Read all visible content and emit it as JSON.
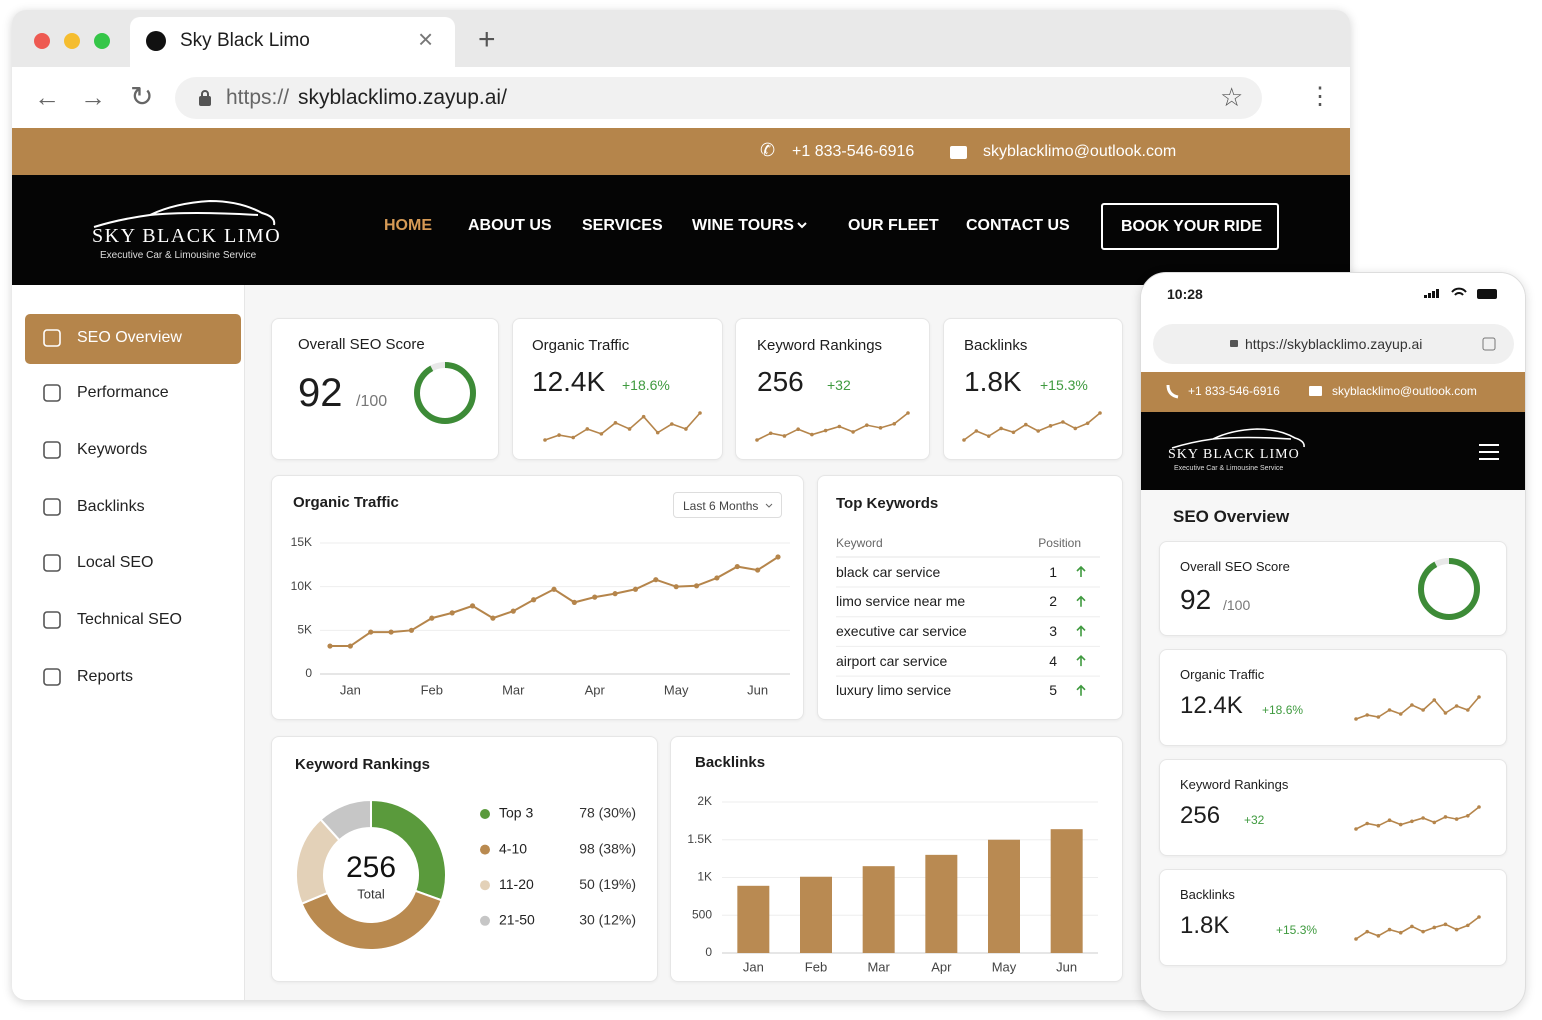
{
  "browser": {
    "tab_title": "Sky Black Limo",
    "url_scheme": "https://",
    "url_host": "skyblacklimo.zayup.ai/"
  },
  "topbar": {
    "phone": "+1 833-546-6916",
    "email": "skyblacklimo@outlook.com"
  },
  "brand": {
    "name": "SKY BLACK LIMO",
    "tagline": "Executive Car & Limousine Service"
  },
  "nav": {
    "items": [
      "HOME",
      "ABOUT US",
      "SERVICES",
      "WINE TOURS",
      "OUR FLEET",
      "CONTACT US"
    ],
    "cta": "BOOK YOUR RIDE"
  },
  "sidebar": [
    "SEO Overview",
    "Performance",
    "Keywords",
    "Backlinks",
    "Local SEO",
    "Technical SEO",
    "Reports"
  ],
  "kpis": {
    "seo_score": {
      "label": "Overall SEO Score",
      "value": 92,
      "out_of": {
        "value": 100,
        "label": "/100"
      }
    },
    "organic_traffic": {
      "label": "Organic Traffic",
      "value": "12.4K",
      "change": "+18.6%",
      "spark": [
        3,
        7,
        5,
        12,
        8,
        17,
        12,
        22,
        9,
        16,
        12,
        25
      ]
    },
    "keyword_rankings": {
      "label": "Keyword Rankings",
      "value": "256",
      "change": "+32",
      "spark": [
        4,
        9,
        7,
        12,
        8,
        11,
        14,
        10,
        15,
        13,
        16,
        24
      ]
    },
    "backlinks": {
      "label": "Backlinks",
      "value": "1.8K",
      "change": "+15.3%",
      "spark": [
        3,
        10,
        6,
        12,
        9,
        15,
        10,
        14,
        17,
        12,
        16,
        24
      ]
    }
  },
  "chart_data": [
    {
      "type": "line",
      "title": "Organic Traffic",
      "range": "Last 6 Months",
      "categories": [
        null,
        "Jan",
        null,
        null,
        null,
        "Feb",
        null,
        null,
        null,
        "Mar",
        null,
        null,
        null,
        "Apr",
        null,
        null,
        null,
        "May",
        null,
        null,
        null,
        "Jun",
        null
      ],
      "values": [
        3200,
        3200,
        4800,
        4800,
        5000,
        6400,
        7000,
        7800,
        6400,
        7200,
        8500,
        9700,
        8200,
        8800,
        9200,
        9700,
        10800,
        10000,
        10100,
        11000,
        12300,
        11900,
        13400
      ],
      "color": "#b5854b",
      "ylim": [
        0,
        15000
      ],
      "yticks": [
        0,
        {
          "value": 5000,
          "label": "5K"
        },
        {
          "value": 10000,
          "label": "10K"
        },
        {
          "value": 15000,
          "label": "15K"
        }
      ],
      "grid": true
    },
    {
      "type": "donut",
      "title": "Keyword Rankings",
      "total": 256,
      "total_label": "Total",
      "categories": [
        "Top 3",
        "4-10",
        "11-20",
        "21-50"
      ],
      "values": [
        78,
        98,
        50,
        30
      ],
      "value_labels": [
        "78 (30%)",
        "98 (38%)",
        "50 (19%)",
        "30 (12%)"
      ],
      "colors": [
        "#5a9a3c",
        "#b98a50",
        "#e3d1b8",
        "#c6c6c6"
      ]
    },
    {
      "type": "bar",
      "title": "Backlinks",
      "categories": [
        "Jan",
        "Feb",
        "Mar",
        "Apr",
        "May",
        "Jun"
      ],
      "values": [
        890,
        1010,
        1150,
        1300,
        1500,
        1640
      ],
      "color": "#b98a52",
      "ylim": [
        0,
        2000
      ],
      "yticks": [
        0,
        500,
        {
          "value": 1000,
          "label": "1K"
        },
        {
          "value": 1500,
          "label": "1.5K"
        },
        {
          "value": 2000,
          "label": "2K"
        }
      ],
      "grid": true
    }
  ],
  "top_keywords": {
    "title": "Top Keywords",
    "columns": [
      "Keyword",
      "Position"
    ],
    "rows": [
      [
        "black car service",
        1
      ],
      [
        "limo service near me",
        2
      ],
      [
        "executive car service",
        3
      ],
      [
        "airport car service",
        4
      ],
      [
        "luxury limo service",
        5
      ]
    ]
  },
  "mobile": {
    "time": "10:28",
    "url": "https://skyblacklimo.zayup.ai",
    "section_title": "SEO Overview"
  }
}
